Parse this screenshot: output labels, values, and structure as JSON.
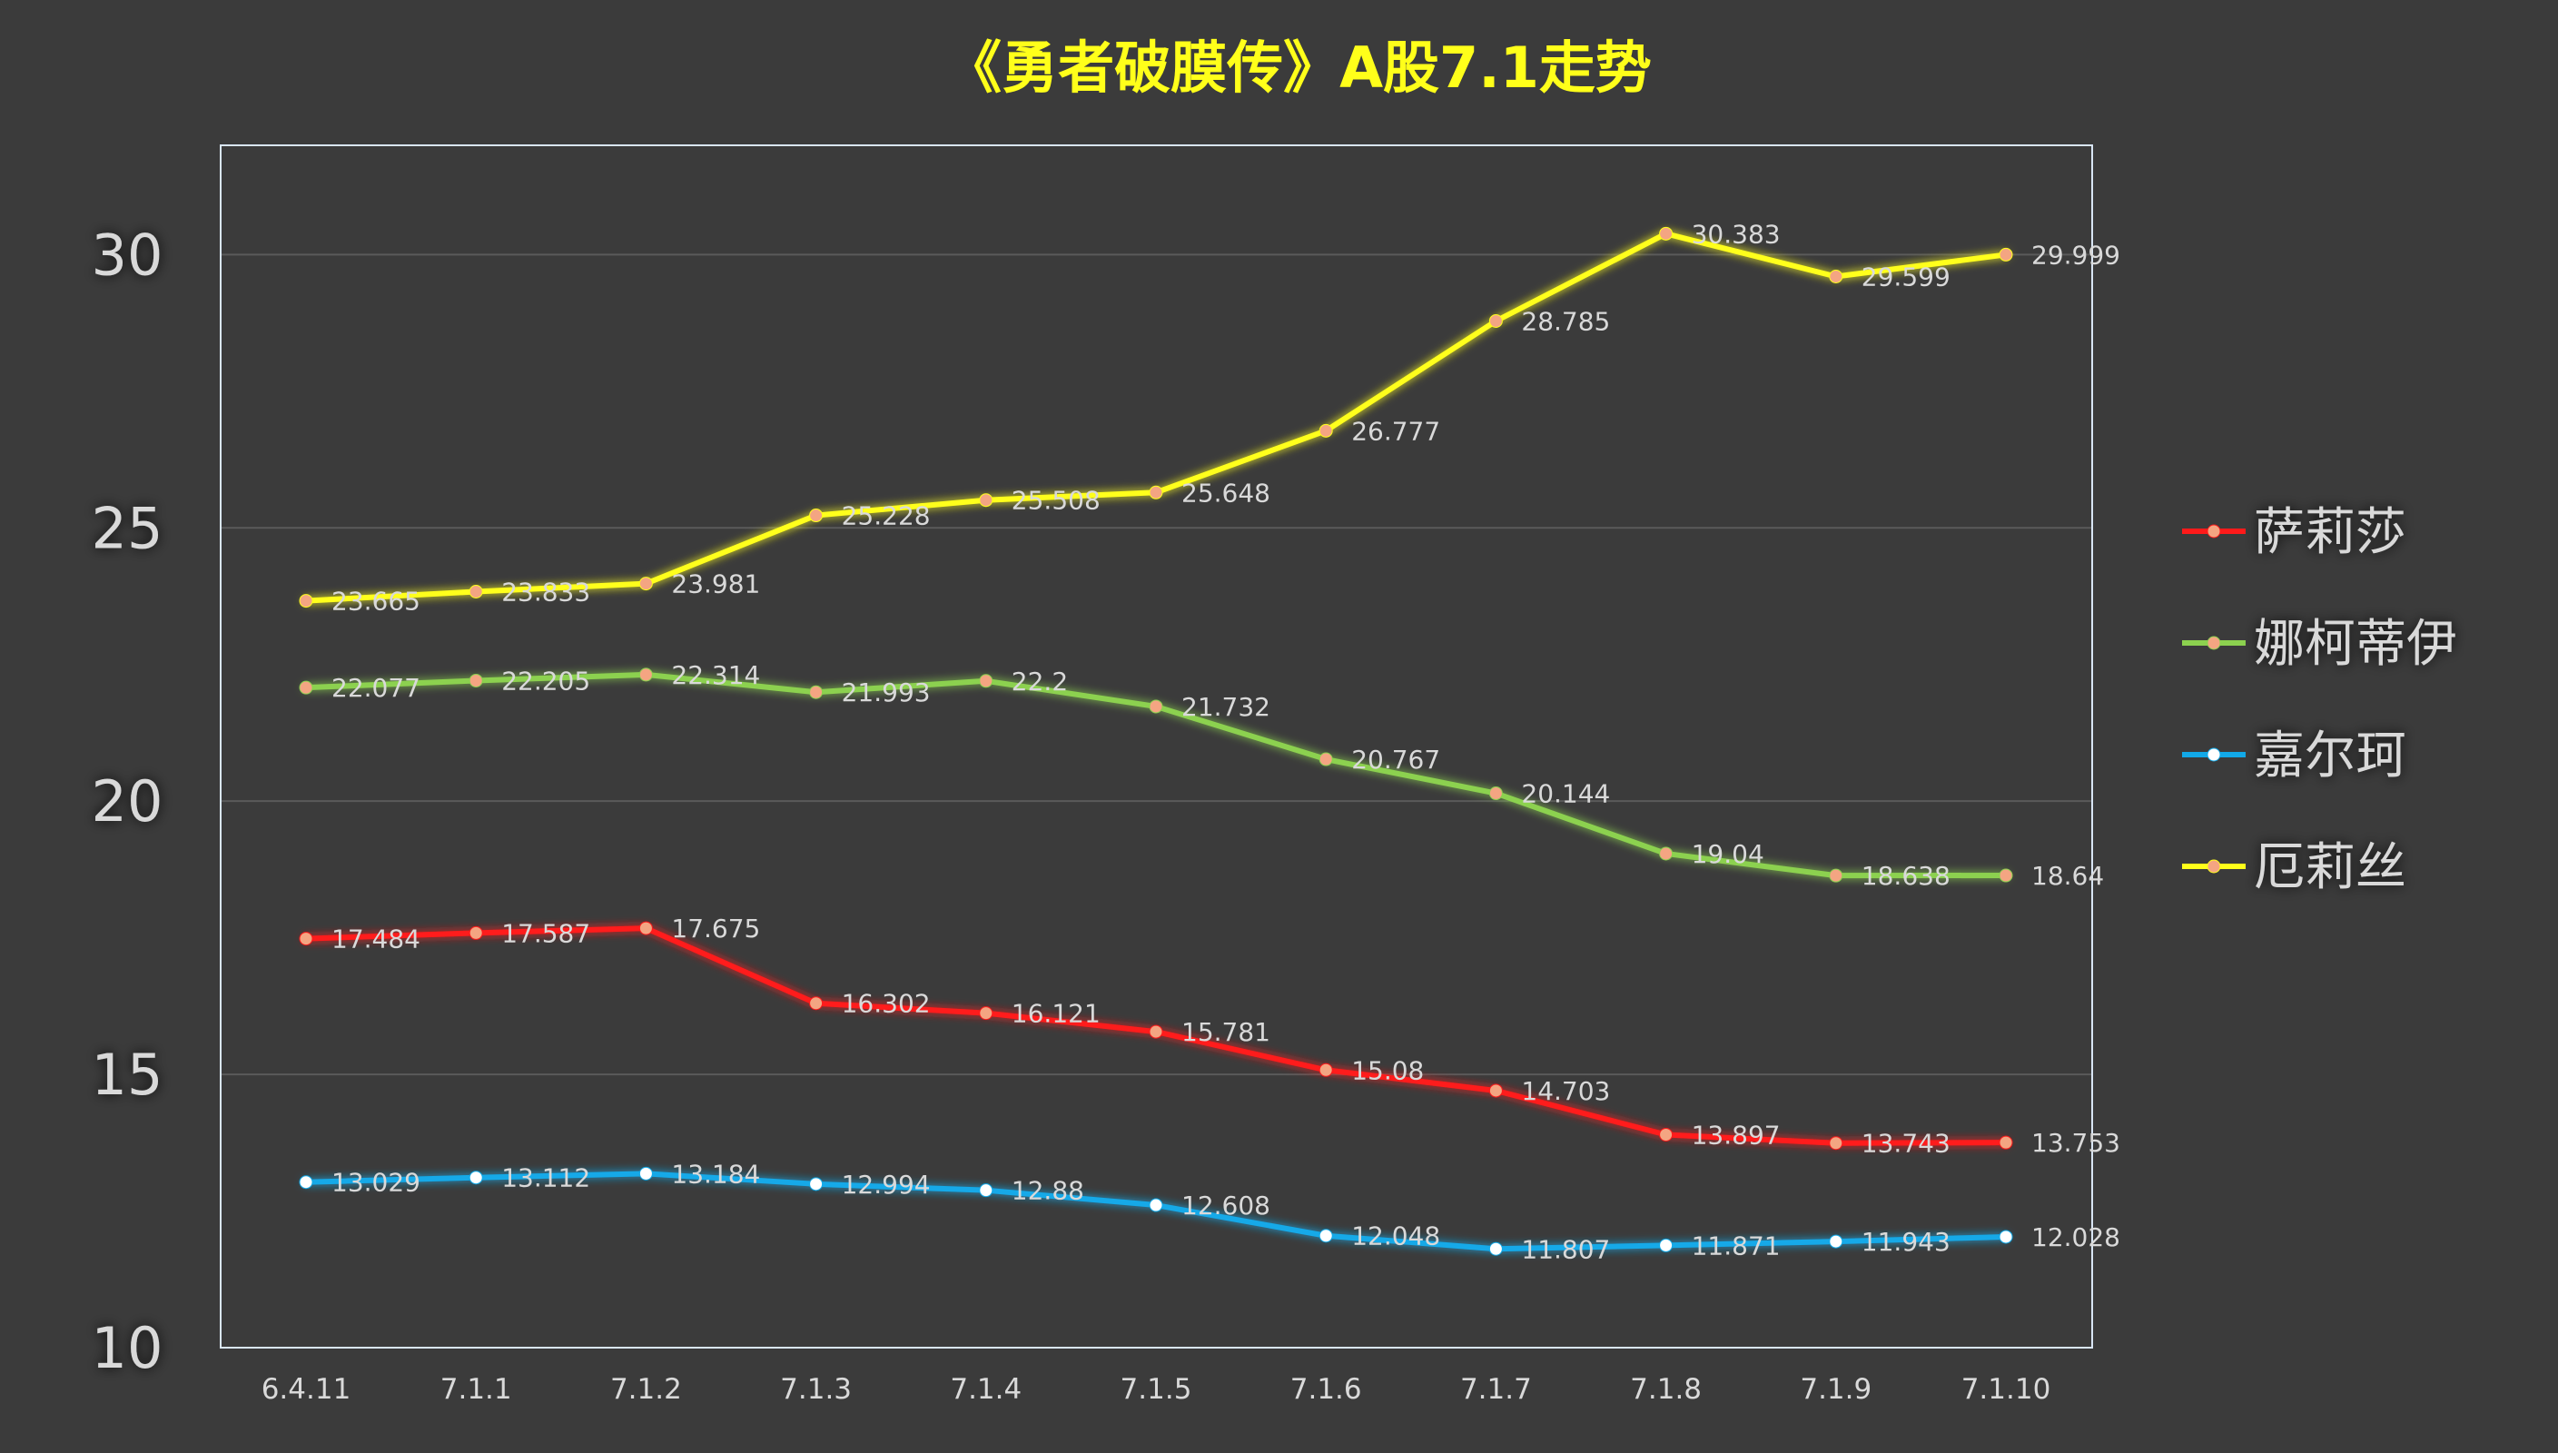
{
  "chart_data": {
    "type": "line",
    "title": "《勇者破膜传》A股7.1走势",
    "xlabel": "",
    "ylabel": "",
    "ylim": [
      10,
      32
    ],
    "yticks": [
      10,
      15,
      20,
      25,
      30
    ],
    "grid": true,
    "legend_position": "right",
    "categories": [
      "6.4.11",
      "7.1.1",
      "7.1.2",
      "7.1.3",
      "7.1.4",
      "7.1.5",
      "7.1.6",
      "7.1.7",
      "7.1.8",
      "7.1.9",
      "7.1.10"
    ],
    "series": [
      {
        "name": "萨莉莎",
        "color": "#ff1a1a",
        "marker_color": "#f4a582",
        "values": [
          17.484,
          17.587,
          17.675,
          16.302,
          16.121,
          15.781,
          15.08,
          14.703,
          13.897,
          13.743,
          13.753
        ]
      },
      {
        "name": "娜柯蒂伊",
        "color": "#8cd14f",
        "marker_color": "#f4a582",
        "values": [
          22.077,
          22.205,
          22.314,
          21.993,
          22.2,
          21.732,
          20.767,
          20.144,
          19.04,
          18.638,
          18.64
        ]
      },
      {
        "name": "嘉尔珂",
        "color": "#12a9e8",
        "marker_color": "#ffffff",
        "values": [
          13.029,
          13.112,
          13.184,
          12.994,
          12.88,
          12.608,
          12.048,
          11.807,
          11.871,
          11.943,
          12.028
        ]
      },
      {
        "name": "厄莉丝",
        "color": "#ffff1a",
        "marker_color": "#f4a582",
        "values": [
          23.665,
          23.833,
          23.981,
          25.228,
          25.508,
          25.648,
          26.777,
          28.785,
          30.383,
          29.599,
          29.999
        ]
      }
    ]
  },
  "colors": {
    "background": "#3b3b3b",
    "title": "#ffff1a",
    "tick_text": "#d9d9d9",
    "data_label": "#d9d9d9",
    "gridline": "#5a5a5a",
    "plot_border": "#d9e6f5"
  }
}
